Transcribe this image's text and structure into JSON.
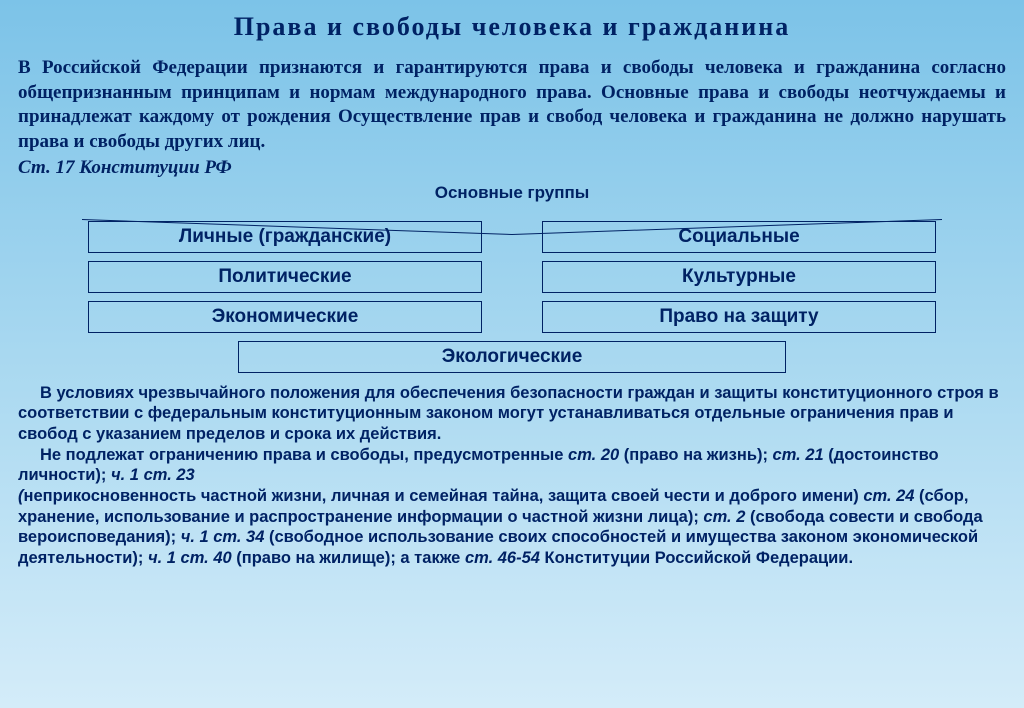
{
  "title": "Права  и  свободы  человека  и  гражданина",
  "intro": "В  Российской  Федерации  признаются  и гарантируются  права  и свободы человека  и  гражданина  согласно  общепризнанным принципам и нормам международного права. Основные права и свободы неотчуждаемы и принадлежат каждому от рождения Осуществление прав и свобод человека и гражданина не должно нарушать права и свободы других лиц.",
  "citation": "Ст. 17 Конституции РФ",
  "groups_label": "Основные группы",
  "groups": {
    "left": [
      "Личные (гражданские)",
      "Политические",
      "Экономические"
    ],
    "right": [
      "Социальные",
      "Культурные",
      "Право на защиту"
    ],
    "bottom": "Экологические"
  },
  "footnote": {
    "p1": "В    условиях чрезвычайного положения для обеспечения безопасности   граждан и защиты конституционного строя в соответствии с федеральным  конституционным законом могут устанавливаться отдельные ограничения прав и свобод с указанием пределов и срока их действия.",
    "p2_pre": "Не подлежат ограничению права и свободы, предусмотренные ",
    "st20": "ст. 20",
    "st20_txt": " (право на жизнь); ",
    "st21": "ст. 21",
    "st21_txt": " (достоинство личности); ",
    "ch1_23": "ч. 1 ст. 23",
    "line_open": "(",
    "line_priv": "неприкосновенность частной жизни, личная и семейная тайна, защита своей чести и доброго имени)",
    "st24": "ст. 24",
    "st24_txt": " (сбор, хранение, использование и распространение информации о частной жизни лица); ",
    "st2": "ст. 2",
    "st28_txt": " (свобода совести и свобода вероисповедания); ",
    "ch1_34": "ч. 1 ст. 34",
    "st34_txt": " (свободное использование своих способностей и имущества законом экономической деятельности); ",
    "ch1_40": "ч. 1 ст. 40",
    "st40_txt": " (право на жилище); а также ",
    "st46": "ст. 46-54",
    "tail": " Конституции Российской Федерации."
  }
}
